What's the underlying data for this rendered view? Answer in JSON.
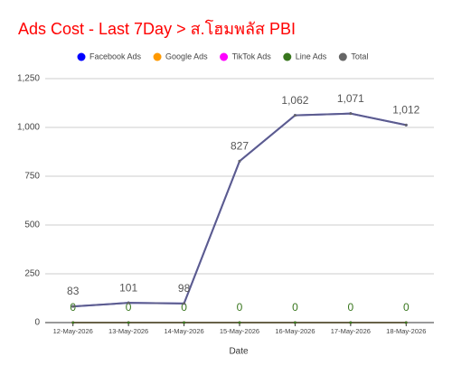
{
  "chart_data": {
    "type": "line",
    "title": "Ads Cost - Last 7Day > ส.โฮมพลัส PBI",
    "x_label": "Date",
    "categories": [
      "12-May-2026",
      "13-May-2026",
      "14-May-2026",
      "15-May-2026",
      "16-May-2026",
      "17-May-2026",
      "18-May-2026"
    ],
    "series": [
      {
        "name": "Facebook Ads",
        "color": "#0000ff",
        "values": [
          83,
          101,
          98,
          827,
          1062,
          1071,
          1012
        ]
      },
      {
        "name": "Google Ads",
        "color": "#ff9900",
        "values": [
          0,
          0,
          0,
          0,
          0,
          0,
          0
        ]
      },
      {
        "name": "TikTok Ads",
        "color": "#ff00ff",
        "values": [
          0,
          0,
          0,
          0,
          0,
          0,
          0
        ]
      },
      {
        "name": "Line Ads",
        "color": "#38761d",
        "values": [
          0,
          0,
          0,
          0,
          0,
          0,
          0
        ],
        "show_labels": true
      },
      {
        "name": "Total",
        "color": "#666666",
        "values": [
          83,
          101,
          98,
          827,
          1062,
          1071,
          1012
        ],
        "show_labels": true,
        "value_labels": [
          "83",
          "101",
          "98",
          "827",
          "1,062",
          "1,071",
          "1,012"
        ]
      }
    ],
    "ylim": [
      0,
      1250
    ],
    "yticks": [
      0,
      250,
      500,
      750,
      {
        "value": 1000,
        "label": "1,000"
      },
      {
        "value": 1250,
        "label": "1,250"
      }
    ],
    "grid": true,
    "legend": "top"
  }
}
